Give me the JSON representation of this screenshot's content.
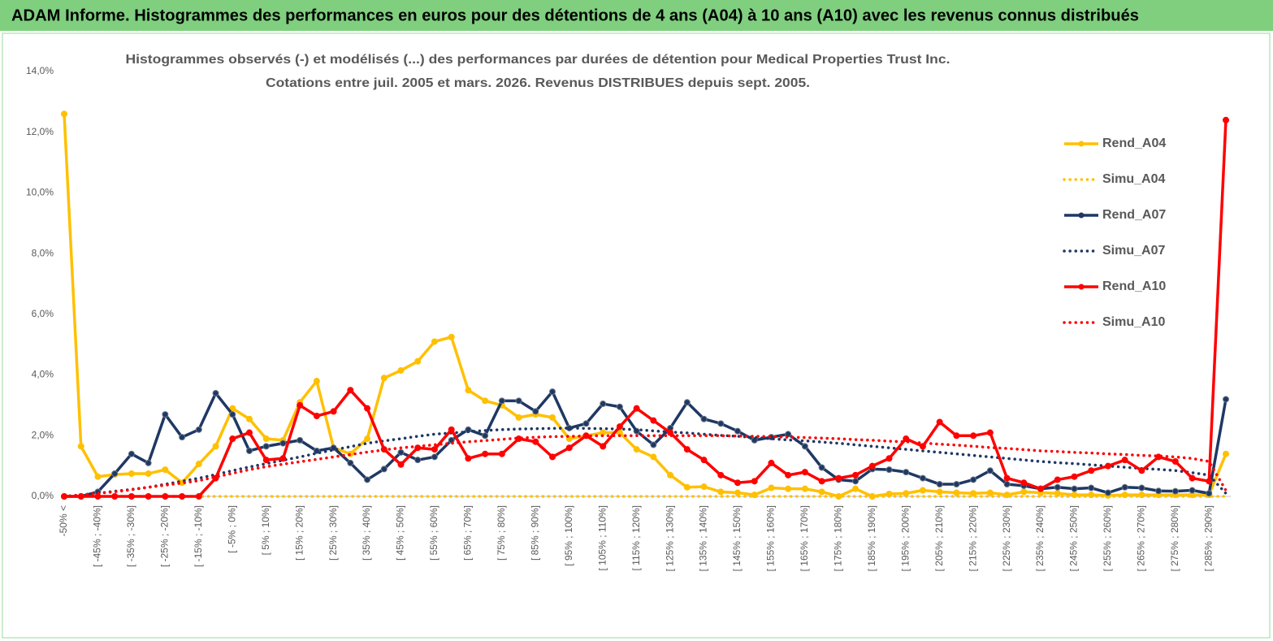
{
  "banner": "ADAM Informe. Histogrammes des performances en euros pour des détentions de 4 ans (A04) à 10 ans (A10) avec les revenus connus distribués",
  "chart_data": {
    "type": "line",
    "title": [
      "Histogrammes observés (-) et modélisés (...) des performances par durées de détention pour Medical Properties Trust Inc.",
      "Cotations entre juil. 2005 et mars. 2026. Revenus DISTRIBUES depuis sept. 2005."
    ],
    "categories": [
      "-50% <",
      null,
      "[ -45% ; -40%]",
      null,
      "[ -35% ; -30%]",
      null,
      "[ -25% ; -20%]",
      null,
      "[ -15% ; -10%]",
      null,
      "[ -5% ; 0%]",
      null,
      "[ 5% ; 10%]",
      null,
      "[ 15% ; 20%]",
      null,
      "[ 25% ; 30%]",
      null,
      "[ 35% ; 40%]",
      null,
      "[ 45% ; 50%]",
      null,
      "[ 55% ; 60%]",
      null,
      "[ 65% ; 70%]",
      null,
      "[ 75% ; 80%]",
      null,
      "[ 85% ; 90%]",
      null,
      "[ 95% ; 100%]",
      null,
      "[ 105% ; 110%]",
      null,
      "[ 115% ; 120%]",
      null,
      "[ 125% ; 130%]",
      null,
      "[ 135% ; 140%]",
      null,
      "[ 145% ; 150%]",
      null,
      "[ 155% ; 160%]",
      null,
      "[ 165% ; 170%]",
      null,
      "[ 175% ; 180%]",
      null,
      "[ 185% ; 190%]",
      null,
      "[ 195% ; 200%]",
      null,
      "[ 205% ; 210%]",
      null,
      "[ 215% ; 220%]",
      null,
      "[ 225% ; 230%]",
      null,
      "[ 235% ; 240%]",
      null,
      "[ 245% ; 250%]",
      null,
      "[ 255% ; 260%]",
      null,
      "[ 265% ; 270%]",
      null,
      "[ 275% ; 280%]",
      null,
      "[ 285% ; 290%]",
      null
    ],
    "ylim": [
      0,
      14
    ],
    "yticks": [
      {
        "value": 0,
        "label": "0,0%"
      },
      {
        "value": 2,
        "label": "2,0%"
      },
      {
        "value": 4,
        "label": "4,0%"
      },
      {
        "value": 6,
        "label": "6,0%"
      },
      {
        "value": 8,
        "label": "8,0%"
      },
      {
        "value": 10,
        "label": "10,0%"
      },
      {
        "value": 12,
        "label": "12,0%"
      },
      {
        "value": 14,
        "label": "14,0%"
      }
    ],
    "grid": false,
    "legend": "right",
    "series": [
      {
        "name": "Rend_A04",
        "color": "#ffc000",
        "style": "solid",
        "markers": true,
        "values": [
          12.6,
          1.65,
          0.65,
          0.72,
          0.75,
          0.75,
          0.88,
          0.45,
          1.07,
          1.65,
          2.9,
          2.55,
          1.9,
          1.85,
          3.1,
          3.8,
          1.6,
          1.4,
          1.9,
          3.9,
          4.15,
          4.45,
          5.1,
          5.25,
          3.5,
          3.15,
          3.0,
          2.6,
          2.7,
          2.6,
          1.9,
          2.0,
          2.1,
          2.1,
          1.55,
          1.3,
          0.7,
          0.3,
          0.32,
          0.15,
          0.12,
          0.05,
          0.28,
          0.25,
          0.25,
          0.15,
          0.0,
          0.25,
          0.0,
          0.08,
          0.1,
          0.2,
          0.15,
          0.12,
          0.1,
          0.12,
          0.05,
          0.15,
          0.12,
          0.1,
          0.05,
          0.05,
          0.03,
          0.05,
          0.05,
          0.05,
          0.05,
          0.05,
          0.05,
          1.4
        ]
      },
      {
        "name": "Simu_A04",
        "color": "#ffc000",
        "style": "dotted",
        "markers": false,
        "values": [
          0,
          0,
          0,
          0,
          0,
          0,
          0,
          0,
          0,
          0,
          0,
          0,
          0,
          0,
          0,
          0,
          0,
          0,
          0,
          0,
          0,
          0,
          0,
          0,
          0,
          0,
          0,
          0,
          0,
          0,
          0,
          0,
          0,
          0,
          0,
          0,
          0,
          0,
          0,
          0,
          0,
          0,
          0,
          0,
          0,
          0,
          0,
          0,
          0,
          0,
          0,
          0,
          0,
          0,
          0,
          0,
          0,
          0,
          0,
          0,
          0,
          0,
          0,
          0,
          0,
          0,
          0,
          0,
          0,
          0
        ]
      },
      {
        "name": "Rend_A07",
        "color": "#1f3864",
        "style": "solid",
        "markers": true,
        "values": [
          0,
          0,
          0.15,
          0.75,
          1.4,
          1.1,
          2.7,
          1.95,
          2.2,
          3.4,
          2.7,
          1.5,
          1.65,
          1.75,
          1.85,
          1.5,
          1.6,
          1.1,
          0.55,
          0.9,
          1.45,
          1.2,
          1.3,
          1.85,
          2.2,
          2.0,
          3.15,
          3.15,
          2.8,
          3.45,
          2.25,
          2.4,
          3.05,
          2.95,
          2.15,
          1.7,
          2.25,
          3.1,
          2.55,
          2.4,
          2.15,
          1.85,
          1.95,
          2.05,
          1.65,
          0.95,
          0.55,
          0.5,
          0.9,
          0.88,
          0.8,
          0.6,
          0.4,
          0.4,
          0.55,
          0.85,
          0.4,
          0.35,
          0.25,
          0.3,
          0.25,
          0.28,
          0.12,
          0.3,
          0.28,
          0.18,
          0.17,
          0.2,
          0.1,
          3.2
        ]
      },
      {
        "name": "Simu_A07",
        "color": "#1f3864",
        "style": "dotted",
        "markers": false,
        "values": [
          0,
          0.05,
          0.1,
          0.17,
          0.23,
          0.3,
          0.4,
          0.5,
          0.6,
          0.72,
          0.85,
          0.97,
          1.08,
          1.19,
          1.3,
          1.42,
          1.53,
          1.64,
          1.75,
          1.83,
          1.9,
          1.98,
          2.05,
          2.09,
          2.13,
          2.17,
          2.2,
          2.22,
          2.23,
          2.24,
          2.25,
          2.24,
          2.23,
          2.22,
          2.2,
          2.16,
          2.12,
          2.09,
          2.05,
          2.01,
          1.98,
          1.94,
          1.9,
          1.86,
          1.83,
          1.79,
          1.75,
          1.7,
          1.65,
          1.6,
          1.55,
          1.5,
          1.45,
          1.4,
          1.35,
          1.3,
          1.25,
          1.2,
          1.15,
          1.11,
          1.08,
          1.04,
          1.0,
          0.96,
          0.92,
          0.89,
          0.85,
          0.78,
          0.7,
          0.1
        ]
      },
      {
        "name": "Rend_A10",
        "color": "#ff0000",
        "style": "solid",
        "markers": true,
        "values": [
          0,
          0,
          0,
          0,
          0,
          0,
          0,
          0,
          0,
          0.6,
          1.9,
          2.1,
          1.2,
          1.25,
          3.0,
          2.65,
          2.8,
          3.5,
          2.9,
          1.55,
          1.05,
          1.6,
          1.55,
          2.2,
          1.25,
          1.4,
          1.4,
          1.9,
          1.8,
          1.3,
          1.6,
          2.0,
          1.65,
          2.3,
          2.9,
          2.5,
          2.1,
          1.55,
          1.2,
          0.7,
          0.45,
          0.5,
          1.1,
          0.7,
          0.8,
          0.5,
          0.6,
          0.7,
          1.0,
          1.25,
          1.9,
          1.65,
          2.45,
          2.0,
          2.0,
          2.1,
          0.6,
          0.45,
          0.25,
          0.55,
          0.65,
          0.85,
          1.0,
          1.2,
          0.85,
          1.3,
          1.15,
          0.6,
          0.5,
          12.4
        ]
      },
      {
        "name": "Simu_A10",
        "color": "#ff0000",
        "style": "dotted",
        "markers": false,
        "values": [
          0,
          0.05,
          0.1,
          0.15,
          0.22,
          0.3,
          0.37,
          0.44,
          0.52,
          0.64,
          0.76,
          0.88,
          0.98,
          1.06,
          1.14,
          1.22,
          1.3,
          1.38,
          1.46,
          1.53,
          1.6,
          1.65,
          1.7,
          1.75,
          1.8,
          1.84,
          1.88,
          1.92,
          1.95,
          1.97,
          1.98,
          1.99,
          2.0,
          2.0,
          2.0,
          2.0,
          2.0,
          2.0,
          2.0,
          2.0,
          1.99,
          1.98,
          1.97,
          1.95,
          1.94,
          1.92,
          1.9,
          1.87,
          1.85,
          1.82,
          1.8,
          1.76,
          1.72,
          1.69,
          1.65,
          1.61,
          1.58,
          1.54,
          1.5,
          1.48,
          1.45,
          1.43,
          1.4,
          1.38,
          1.35,
          1.33,
          1.3,
          1.25,
          1.15,
          0.2
        ]
      }
    ]
  }
}
